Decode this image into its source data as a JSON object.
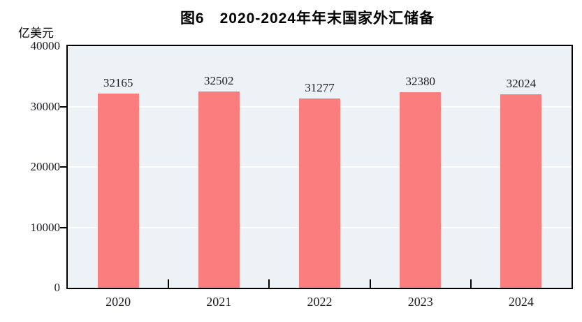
{
  "figure": {
    "title": "图6　2020-2024年年末国家外汇储备",
    "unit_label": "亿美元"
  },
  "chart_data": {
    "type": "bar",
    "title": "图6　2020-2024年年末国家外汇储备",
    "categories": [
      "2020",
      "2021",
      "2022",
      "2023",
      "2024"
    ],
    "values": [
      32165,
      32502,
      31277,
      32380,
      32024
    ],
    "data_labels": [
      "32165",
      "32502",
      "31277",
      "32380",
      "32024"
    ],
    "xlabel": "",
    "ylabel": "亿美元",
    "ylim": [
      0,
      40000
    ],
    "yticks": [
      0,
      10000,
      20000,
      30000,
      40000
    ],
    "grid": true,
    "legend_position": "none",
    "colors": {
      "bar": "#fb7e7e",
      "plot_background": "#edf2f6",
      "gridline": "#ffffff",
      "axis": "#000000",
      "label_text": "#1b1b22"
    }
  }
}
